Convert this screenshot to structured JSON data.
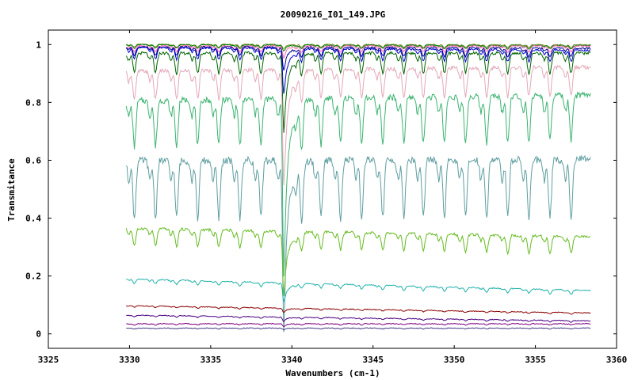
{
  "chart_data": {
    "type": "line",
    "title": "20090216_I01_149.JPG",
    "xlabel": "Wavenumbers (cm-1)",
    "ylabel": "Transmitance",
    "xlim": [
      3325,
      3360
    ],
    "ylim": [
      -0.05,
      1.05
    ],
    "x_ticks": [
      3325,
      3330,
      3335,
      3340,
      3345,
      3350,
      3355,
      3360
    ],
    "y_ticks": [
      0,
      0.2,
      0.4,
      0.6,
      0.8,
      1
    ],
    "x_tick_labels": [
      "3325",
      "3330",
      "3335",
      "3340",
      "3345",
      "3350",
      "3355",
      "3360"
    ],
    "y_tick_labels": [
      "0",
      "0.2",
      "0.4",
      "0.6",
      "0.8",
      "1"
    ],
    "x_range": [
      3329.8,
      3358.4
    ],
    "grid": false,
    "legend": "none",
    "series": [
      {
        "color": "#6b8e23",
        "baseline": 1.0,
        "trend": -0.002,
        "lines_depth": 0.01,
        "peak_depth": 0.005
      },
      {
        "color": "#008000",
        "baseline": 0.998,
        "trend": -0.003,
        "lines_depth": 0.012,
        "peak_depth": 0.01
      },
      {
        "color": "#ff69b4",
        "baseline": 0.995,
        "trend": 0.0,
        "lines_depth": 0.02,
        "peak_depth": 0.02
      },
      {
        "color": "#00008b",
        "baseline": 0.99,
        "trend": -0.005,
        "lines_depth": 0.03,
        "peak_depth": 0.05
      },
      {
        "color": "#0000cd",
        "baseline": 0.985,
        "trend": -0.01,
        "lines_depth": 0.04,
        "peak_depth": 0.12
      },
      {
        "color": "#006400",
        "baseline": 0.97,
        "trend": 0.0,
        "lines_depth": 0.07,
        "peak_depth": 0.2
      },
      {
        "color": "#e3a8b8",
        "baseline": 0.915,
        "trend": 0.015,
        "lines_depth": 0.1,
        "peak_depth": 0.3
      },
      {
        "color": "#3cb371",
        "baseline": 0.815,
        "trend": 0.02,
        "lines_depth": 0.16,
        "peak_depth": 0.45
      },
      {
        "color": "#5f9ea0",
        "baseline": 0.6,
        "trend": 0.005,
        "lines_depth": 0.2,
        "peak_depth": 0.4
      },
      {
        "color": "#66bb22",
        "baseline": 0.35,
        "trend": -0.03,
        "lines_depth": 0.06,
        "peak_depth": 0.16
      },
      {
        "color": "#20b2aa",
        "baseline": 0.17,
        "trend": -0.04,
        "lines_depth": 0.015,
        "peak_depth": 0.05
      },
      {
        "color": "#8b0000",
        "baseline": 0.085,
        "trend": -0.025,
        "lines_depth": 0.005,
        "peak_depth": 0.01
      },
      {
        "color": "#4b0082",
        "baseline": 0.055,
        "trend": -0.02,
        "lines_depth": 0.005,
        "peak_depth": 0.01
      },
      {
        "color": "#800080",
        "baseline": 0.035,
        "trend": 0.0,
        "lines_depth": 0.004,
        "peak_depth": 0.005
      },
      {
        "color": "#483d8b",
        "baseline": 0.02,
        "trend": 0.0,
        "lines_depth": 0.003,
        "peak_depth": 0.003
      }
    ],
    "absorption_lines_x": [
      3330.3,
      3331.6,
      3332.9,
      3334.2,
      3335.5,
      3336.8,
      3338.1,
      3339.5,
      3340.6,
      3341.8,
      3343.0,
      3344.3,
      3345.6,
      3346.9,
      3348.1,
      3349.4,
      3350.7,
      3352.0,
      3353.3,
      3354.6,
      3355.9,
      3357.2
    ],
    "strong_peak_x": 3339.5
  }
}
